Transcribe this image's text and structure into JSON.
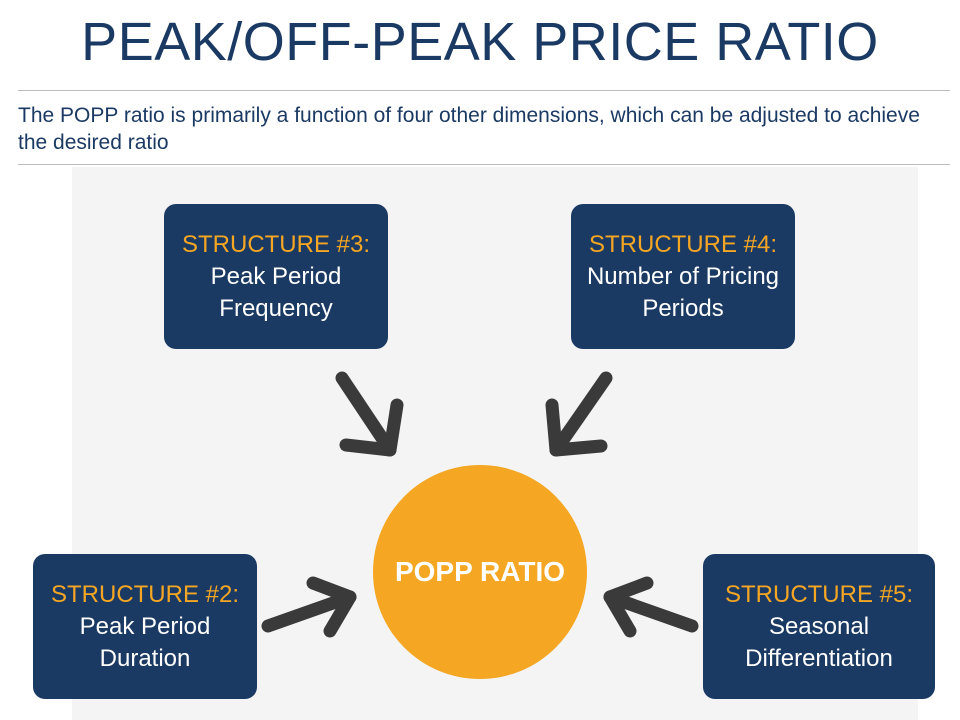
{
  "title": "PEAK/OFF-PEAK PRICE RATIO",
  "subtitle": "The POPP ratio is primarily a function of four other dimensions, which can be adjusted to achieve the desired ratio",
  "center": {
    "label": "POPP RATIO"
  },
  "structures": {
    "s3": {
      "heading": "STRUCTURE #3:",
      "line1": "Peak Period",
      "line2": "Frequency"
    },
    "s4": {
      "heading": "STRUCTURE #4:",
      "line1": "Number of Pricing",
      "line2": "Periods"
    },
    "s2": {
      "heading": "STRUCTURE #2:",
      "line1": "Peak Period",
      "line2": "Duration"
    },
    "s5": {
      "heading": "STRUCTURE #5:",
      "line1": "Seasonal",
      "line2": "Differentiation"
    }
  },
  "colors": {
    "navy": "#1b3a63",
    "accent": "#f5a623",
    "arrow": "#3a3a3a",
    "panel": "#f4f4f4"
  }
}
